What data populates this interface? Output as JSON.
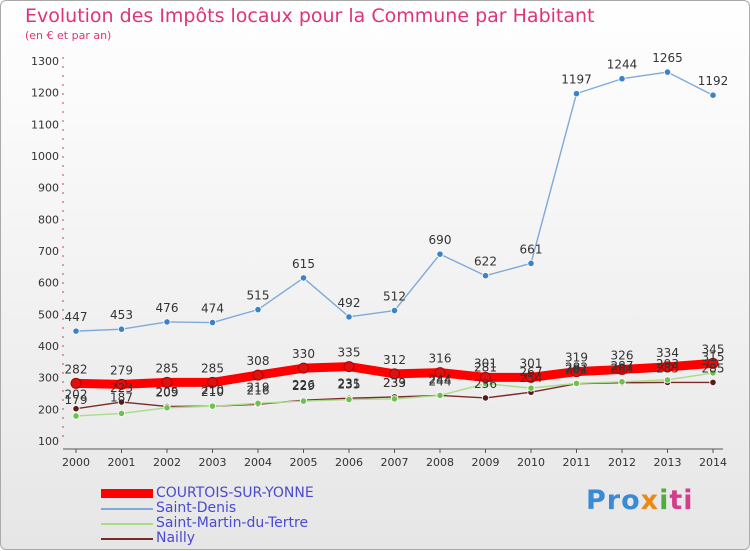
{
  "title": "Evolution des Impôts locaux pour la Commune par Habitant",
  "subtitle": "(en € et par an)",
  "brand": {
    "p1": "Pro",
    "p2": "x",
    "p3": "i",
    "p4": "ti"
  },
  "chart_data": {
    "type": "line",
    "x": [
      "2000",
      "2001",
      "2002",
      "2003",
      "2004",
      "2005",
      "2006",
      "2007",
      "2008",
      "2009",
      "2010",
      "2011",
      "2012",
      "2013",
      "2014"
    ],
    "ylim": [
      100,
      1300
    ],
    "yticks": [
      100,
      200,
      300,
      400,
      500,
      600,
      700,
      800,
      900,
      1000,
      1100,
      1200,
      1300
    ],
    "grid": false,
    "legend": "bottom-left",
    "series": [
      {
        "name": "COURTOIS-SUR-YONNE",
        "color": "#ff0000",
        "marker": "#dd1111",
        "values": [
          282,
          279,
          285,
          285,
          308,
          330,
          335,
          312,
          316,
          301,
          301,
          319,
          326,
          334,
          345
        ]
      },
      {
        "name": "Saint-Denis",
        "color": "#7fa9d9",
        "marker": "#3b82c6",
        "values": [
          447,
          453,
          476,
          474,
          515,
          615,
          492,
          512,
          690,
          622,
          661,
          1197,
          1244,
          1265,
          1192
        ]
      },
      {
        "name": "Saint-Martin-du-Tertre",
        "color": "#a8dc8a",
        "marker": "#6cc24a",
        "values": [
          179,
          187,
          205,
          210,
          219,
          226,
          231,
          233,
          244,
          281,
          267,
          282,
          287,
          293,
          315
        ]
      },
      {
        "name": "Nailly",
        "color": "#7a2a2a",
        "marker": "#5a1a1a",
        "values": [
          202,
          223,
          209,
          210,
          216,
          229,
          235,
          239,
          244,
          236,
          254,
          281,
          284,
          285,
          285
        ]
      }
    ]
  }
}
